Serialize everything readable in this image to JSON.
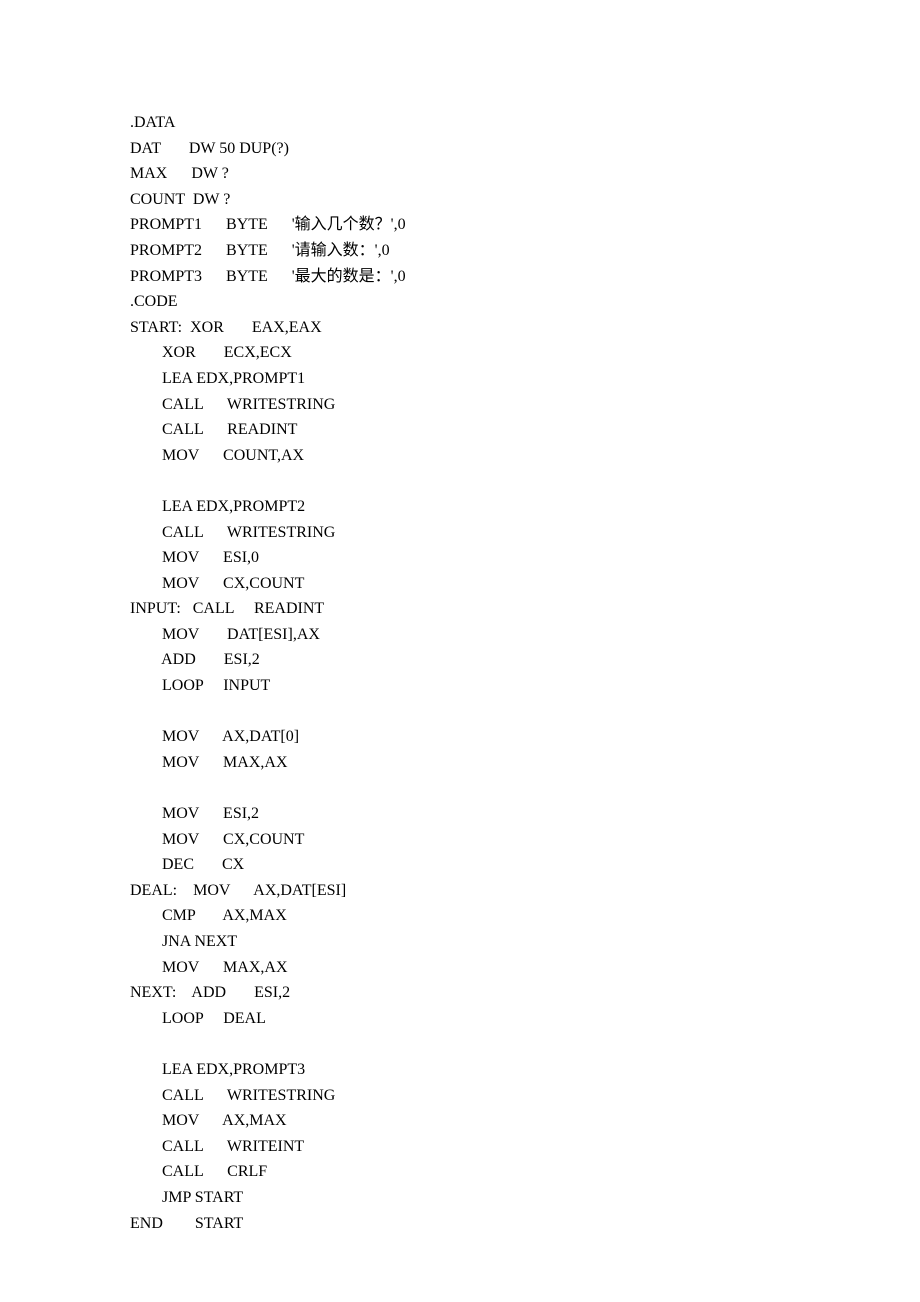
{
  "code": {
    "font_family": "Times New Roman, SimSun, serif",
    "font_size_pt": 12,
    "text_color": "#000000",
    "background_color": "#ffffff",
    "line_height": 1.6,
    "lines": [
      ".DATA",
      "DAT       DW 50 DUP(?)",
      "MAX      DW ?",
      "COUNT  DW ?",
      "PROMPT1      BYTE      '输入几个数？',0",
      "PROMPT2      BYTE      '请输入数：',0",
      "PROMPT3      BYTE      '最大的数是：',0",
      ".CODE",
      "START:  XOR       EAX,EAX",
      "        XOR       ECX,ECX",
      "        LEA EDX,PROMPT1",
      "        CALL      WRITESTRING",
      "        CALL      READINT",
      "        MOV      COUNT,AX",
      "",
      "        LEA EDX,PROMPT2",
      "        CALL      WRITESTRING",
      "        MOV      ESI,0",
      "        MOV      CX,COUNT",
      "INPUT:   CALL     READINT",
      "        MOV       DAT[ESI],AX",
      "        ADD       ESI,2",
      "        LOOP     INPUT",
      "",
      "        MOV      AX,DAT[0]",
      "        MOV      MAX,AX",
      "",
      "        MOV      ESI,2",
      "        MOV      CX,COUNT",
      "        DEC       CX",
      "DEAL:    MOV      AX,DAT[ESI]",
      "        CMP       AX,MAX",
      "        JNA NEXT",
      "        MOV      MAX,AX",
      "NEXT:    ADD       ESI,2",
      "        LOOP     DEAL",
      "",
      "        LEA EDX,PROMPT3",
      "        CALL      WRITESTRING",
      "        MOV      AX,MAX",
      "        CALL      WRITEINT",
      "        CALL      CRLF",
      "        JMP START",
      "END        START"
    ]
  }
}
